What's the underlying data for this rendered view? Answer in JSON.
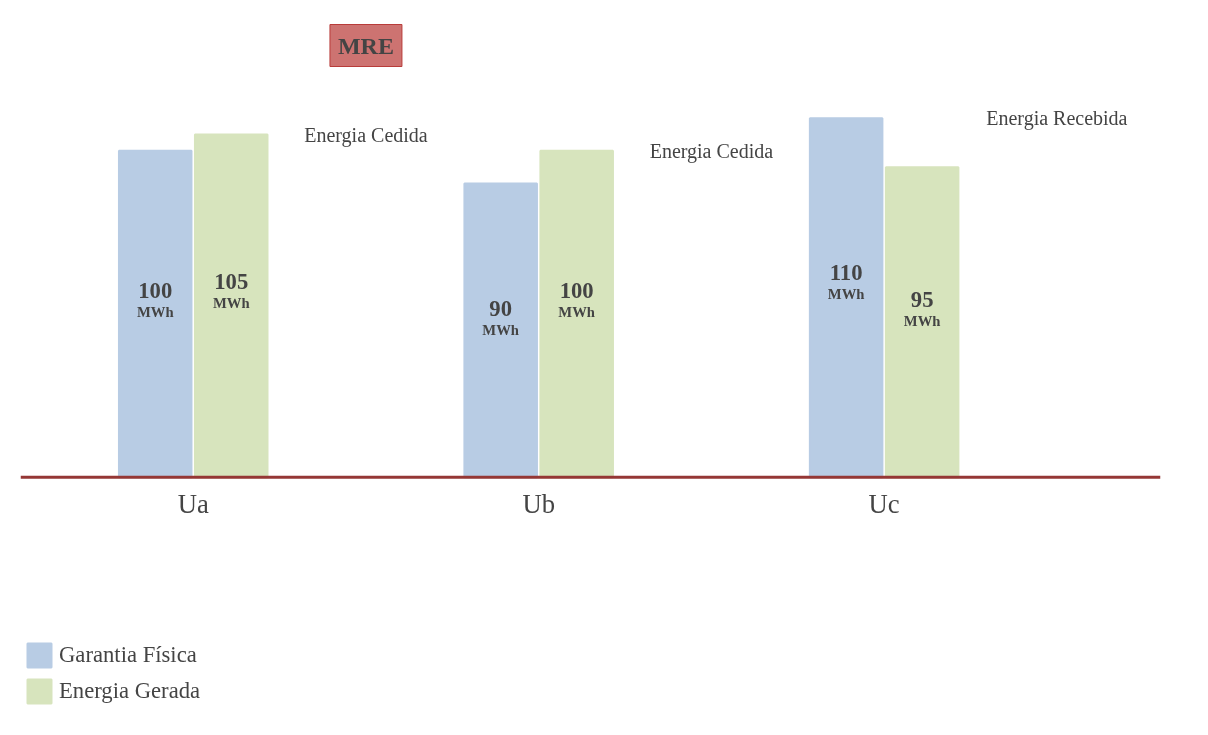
{
  "chart_data": {
    "type": "bar",
    "categories": [
      "Ua",
      "Ub",
      "Uc"
    ],
    "series": [
      {
        "name": "Garantia Física",
        "color": "#b8cce4",
        "values": [
          100,
          90,
          110
        ],
        "value_labels": [
          "100 MWh",
          "90 MWh",
          "110 MWh"
        ]
      },
      {
        "name": "Energia Gerada",
        "color": "#d7e4bd",
        "values": [
          105,
          100,
          95
        ],
        "value_labels": [
          "105 MWh",
          "100 MWh",
          "95 MWh"
        ]
      }
    ],
    "annotations": [
      "MRE",
      "Energia Cedida",
      "Energia Cedida",
      "Energia Recebida"
    ],
    "legend": "bottom left"
  }
}
